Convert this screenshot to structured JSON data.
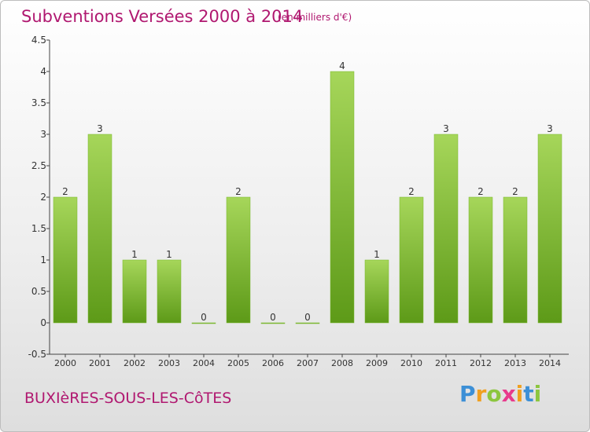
{
  "header": {
    "title": "Subventions Versées 2000 à 2014",
    "unit": "(en milliers d'€)"
  },
  "footer": {
    "town": "BUXIèRES-SOUS-LES-CôTES"
  },
  "logo": {
    "letters": [
      "P",
      "r",
      "o",
      "x",
      "i",
      "t",
      "i"
    ],
    "colors": [
      "#3c8fd6",
      "#f0a020",
      "#8cc63f",
      "#e83a8c",
      "#f0a020",
      "#3c8fd6",
      "#8cc63f"
    ]
  },
  "colors": {
    "bar_light": "#a6d65a",
    "bar_dark": "#5d9a18",
    "text": "#b01870"
  },
  "chart_data": {
    "type": "bar",
    "title": "Subventions Versées 2000 à 2014",
    "categories": [
      "2000",
      "2001",
      "2002",
      "2003",
      "2004",
      "2005",
      "2006",
      "2007",
      "2008",
      "2009",
      "2010",
      "2011",
      "2012",
      "2013",
      "2014"
    ],
    "values": [
      2,
      3,
      1,
      1,
      0,
      2,
      0,
      0,
      4,
      1,
      2,
      3,
      2,
      2,
      3
    ],
    "ylim": [
      -0.5,
      4.5
    ],
    "yticks": [
      "-0.5",
      "0",
      "0.5",
      "1",
      "1.5",
      "2",
      "2.5",
      "3",
      "3.5",
      "4",
      "4.5"
    ],
    "grid": false
  }
}
